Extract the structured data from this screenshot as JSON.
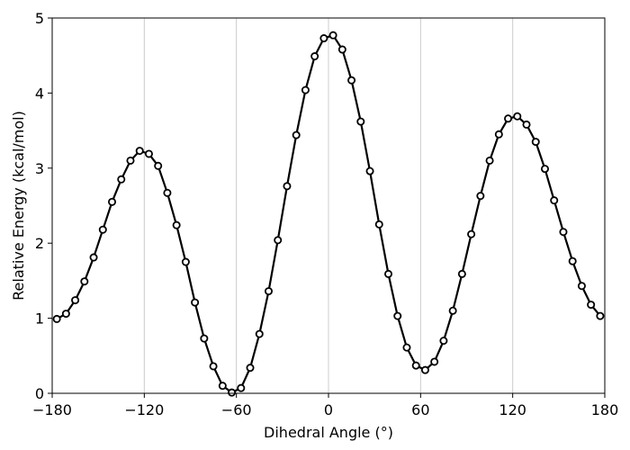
{
  "chart_data": {
    "type": "line",
    "title": "",
    "xlabel": "Dihedral Angle (°)",
    "ylabel": "Relative Energy (kcal/mol)",
    "xlim": [
      -180,
      180
    ],
    "ylim": [
      0,
      5
    ],
    "xticks": [
      -180,
      -120,
      -60,
      0,
      60,
      120,
      180
    ],
    "xtick_labels": [
      "−180",
      "−120",
      "−60",
      "0",
      "60",
      "120",
      "180"
    ],
    "yticks": [
      0,
      1,
      2,
      3,
      4,
      5
    ],
    "ytick_labels": [
      "0",
      "1",
      "2",
      "3",
      "4",
      "5"
    ],
    "grid": "vertical",
    "legend": "none",
    "line_color": "#000000",
    "marker_fill": "#ffffff",
    "grid_color": "#cccccc",
    "series": [
      {
        "x": [
          -177,
          -171,
          -165,
          -159,
          -153,
          -147,
          -141,
          -135,
          -129,
          -123,
          -117,
          -111,
          -105,
          -99,
          -93,
          -87,
          -81,
          -75,
          -69,
          -63,
          -57,
          -51,
          -45,
          -39,
          -33,
          -27,
          -21,
          -15,
          -9,
          -3,
          3,
          9,
          15,
          21,
          27,
          33,
          39,
          45,
          51,
          57,
          63,
          69,
          75,
          81,
          87,
          93,
          99,
          105,
          111,
          117,
          123,
          129,
          135,
          141,
          147,
          153,
          159,
          165,
          171,
          177
        ],
        "y": [
          0.99,
          1.06,
          1.24,
          1.49,
          1.81,
          2.18,
          2.55,
          2.85,
          3.1,
          3.23,
          3.19,
          3.03,
          2.67,
          2.24,
          1.75,
          1.21,
          0.73,
          0.36,
          0.1,
          0.01,
          0.07,
          0.34,
          0.79,
          1.36,
          2.04,
          2.76,
          3.44,
          4.04,
          4.49,
          4.73,
          4.77,
          4.58,
          4.17,
          3.62,
          2.96,
          2.25,
          1.59,
          1.03,
          0.61,
          0.37,
          0.31,
          0.42,
          0.7,
          1.1,
          1.59,
          2.12,
          2.63,
          3.1,
          3.45,
          3.66,
          3.69,
          3.58,
          3.35,
          2.99,
          2.57,
          2.15,
          1.76,
          1.43,
          1.18,
          1.03
        ]
      }
    ]
  }
}
